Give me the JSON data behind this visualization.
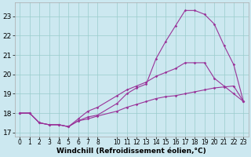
{
  "background_color": "#cce8f0",
  "line_color": "#993399",
  "grid_color": "#99cccc",
  "xlabel": "Windchill (Refroidissement éolien,°C)",
  "xlabel_fontsize": 6.5,
  "ytick_fontsize": 6.5,
  "xtick_fontsize": 5.5,
  "xlim": [
    -0.5,
    23.5
  ],
  "ylim": [
    16.8,
    23.7
  ],
  "yticks": [
    17,
    18,
    19,
    20,
    21,
    22,
    23
  ],
  "xticks": [
    0,
    1,
    2,
    3,
    4,
    5,
    6,
    7,
    8,
    10,
    11,
    12,
    13,
    14,
    15,
    16,
    17,
    18,
    19,
    20,
    21,
    22,
    23
  ],
  "line1_x": [
    0,
    1,
    2,
    3,
    4,
    5,
    6,
    7,
    8,
    10,
    11,
    12,
    13,
    14,
    15,
    16,
    17,
    18,
    19,
    20,
    21,
    22,
    23
  ],
  "line1_y": [
    18.0,
    18.0,
    17.5,
    17.4,
    17.4,
    17.3,
    17.6,
    17.8,
    17.9,
    18.5,
    19.0,
    19.3,
    19.5,
    20.8,
    21.7,
    22.5,
    23.3,
    23.3,
    23.1,
    22.6,
    21.5,
    20.5,
    18.6
  ],
  "line2_x": [
    0,
    1,
    2,
    3,
    4,
    5,
    6,
    7,
    8,
    10,
    11,
    12,
    13,
    14,
    15,
    16,
    17,
    18,
    19,
    20,
    21,
    22,
    23
  ],
  "line2_y": [
    18.0,
    18.0,
    17.5,
    17.4,
    17.4,
    17.3,
    17.7,
    18.1,
    18.3,
    18.9,
    19.2,
    19.4,
    19.6,
    19.9,
    20.1,
    20.3,
    20.6,
    20.6,
    20.6,
    19.8,
    19.4,
    19.0,
    18.6
  ],
  "line3_x": [
    0,
    1,
    2,
    3,
    4,
    5,
    6,
    7,
    8,
    10,
    11,
    12,
    13,
    14,
    15,
    16,
    17,
    18,
    19,
    20,
    21,
    22,
    23
  ],
  "line3_y": [
    18.0,
    18.0,
    17.5,
    17.4,
    17.4,
    17.3,
    17.6,
    17.7,
    17.85,
    18.1,
    18.3,
    18.45,
    18.6,
    18.75,
    18.85,
    18.9,
    19.0,
    19.1,
    19.2,
    19.3,
    19.35,
    19.4,
    18.6
  ]
}
